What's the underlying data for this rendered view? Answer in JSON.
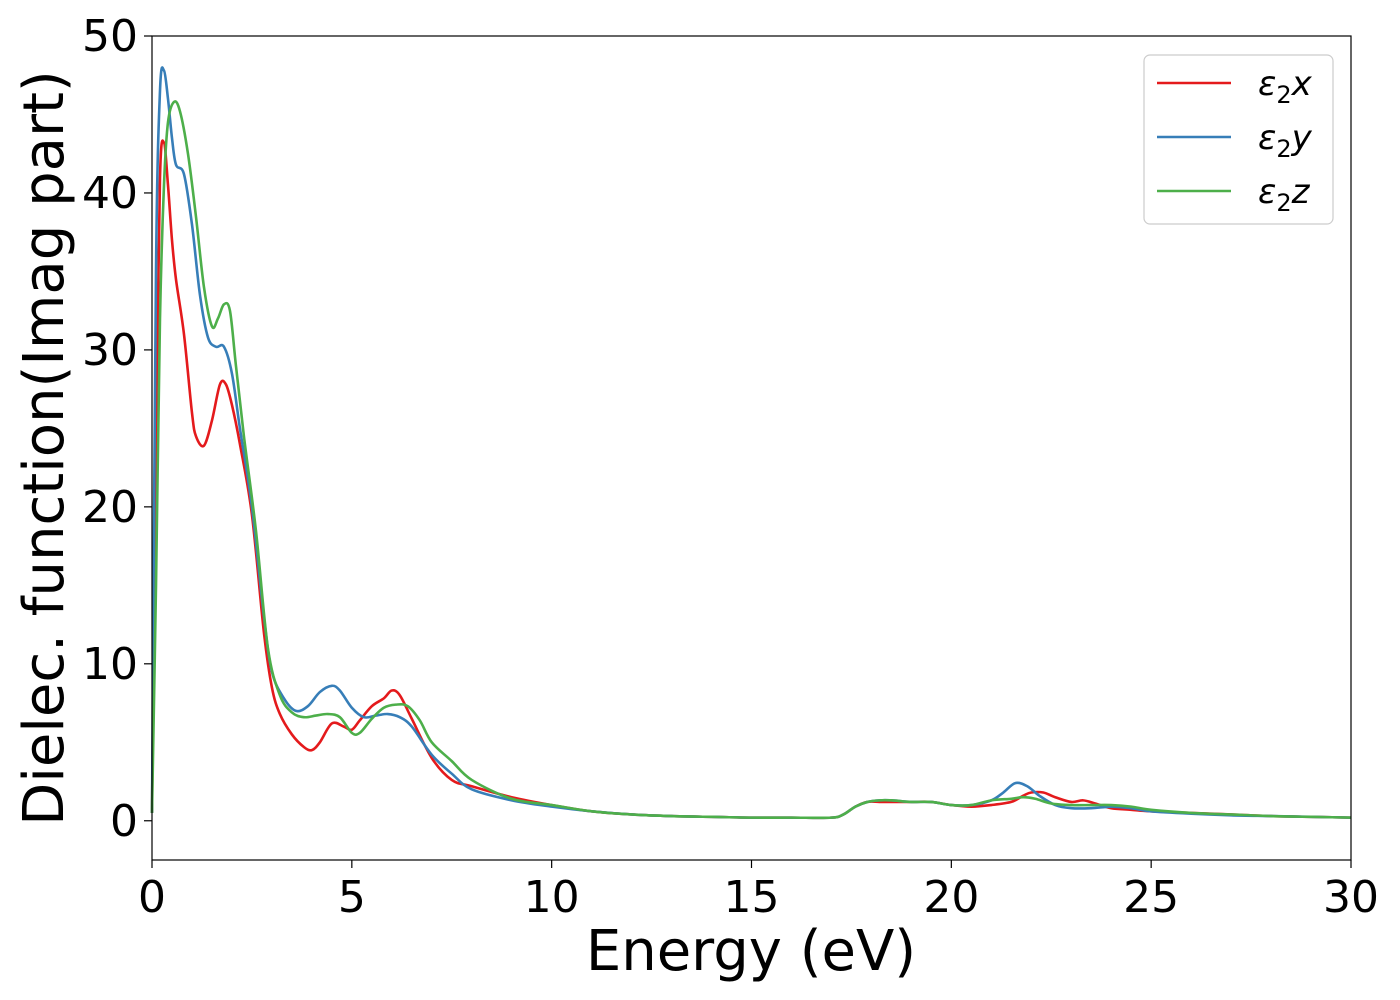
{
  "chart_data": {
    "type": "line",
    "title": "",
    "xlabel": "Energy (eV)",
    "ylabel": "Dielec. function(Imag part)",
    "xlim": [
      0,
      30
    ],
    "ylim": [
      -2.5,
      50
    ],
    "xticks": [
      0,
      5,
      10,
      15,
      20,
      25,
      30
    ],
    "xtick_labels": [
      "0",
      "5",
      "10",
      "15",
      "20",
      "25",
      "30"
    ],
    "yticks": [
      0,
      10,
      20,
      30,
      40,
      50
    ],
    "ytick_labels": [
      "0",
      "10",
      "20",
      "30",
      "40",
      "50"
    ],
    "grid": false,
    "legend_position": "top-right",
    "series": [
      {
        "name": "ε₂x",
        "legend_main": "ε",
        "legend_sub": "2",
        "legend_tail": "x",
        "color": "#e41a1c",
        "x": [
          0,
          0.1,
          0.2,
          0.3,
          0.4,
          0.5,
          0.6,
          0.8,
          1.0,
          1.1,
          1.3,
          1.5,
          1.7,
          1.85,
          2.0,
          2.2,
          2.5,
          2.8,
          3.0,
          3.2,
          3.5,
          3.8,
          4.0,
          4.2,
          4.5,
          4.8,
          5.0,
          5.2,
          5.5,
          5.8,
          6.0,
          6.2,
          6.5,
          7.0,
          7.5,
          8.0,
          9.0,
          10.0,
          11.0,
          12.0,
          13.0,
          14.0,
          15.0,
          16.0,
          17.0,
          17.3,
          17.6,
          17.9,
          18.2,
          18.5,
          19.0,
          19.5,
          20.0,
          20.5,
          21.0,
          21.5,
          21.8,
          22.0,
          22.3,
          22.6,
          23.0,
          23.3,
          23.6,
          24.0,
          24.5,
          25.0,
          26.0,
          27.0,
          28.0,
          29.0,
          30.0
        ],
        "y": [
          0.5,
          25.0,
          41.0,
          43.2,
          40.5,
          37.0,
          34.5,
          31.0,
          26.0,
          24.5,
          23.9,
          25.5,
          27.8,
          27.8,
          26.5,
          24.0,
          19.5,
          12.0,
          8.5,
          6.8,
          5.5,
          4.7,
          4.5,
          5.0,
          6.2,
          6.0,
          5.8,
          6.4,
          7.3,
          7.8,
          8.3,
          8.0,
          6.5,
          4.0,
          2.6,
          2.2,
          1.5,
          1.0,
          0.6,
          0.4,
          0.3,
          0.25,
          0.2,
          0.2,
          0.2,
          0.4,
          0.9,
          1.2,
          1.2,
          1.2,
          1.2,
          1.2,
          1.0,
          0.9,
          1.0,
          1.2,
          1.6,
          1.8,
          1.8,
          1.5,
          1.2,
          1.3,
          1.1,
          0.8,
          0.7,
          0.6,
          0.5,
          0.4,
          0.3,
          0.25,
          0.2
        ]
      },
      {
        "name": "ε₂y",
        "legend_main": "ε",
        "legend_sub": "2",
        "legend_tail": "y",
        "color": "#377eb8",
        "x": [
          0,
          0.1,
          0.2,
          0.3,
          0.4,
          0.5,
          0.6,
          0.8,
          1.0,
          1.2,
          1.4,
          1.6,
          1.8,
          2.0,
          2.2,
          2.5,
          2.8,
          3.0,
          3.3,
          3.6,
          3.9,
          4.2,
          4.5,
          4.7,
          5.0,
          5.3,
          5.6,
          5.9,
          6.2,
          6.5,
          7.0,
          7.5,
          8.0,
          9.0,
          10.0,
          11.0,
          12.0,
          13.0,
          14.0,
          15.0,
          16.0,
          17.0,
          17.3,
          17.6,
          17.9,
          18.2,
          18.5,
          19.0,
          19.5,
          20.0,
          20.5,
          21.0,
          21.3,
          21.6,
          21.9,
          22.2,
          22.6,
          23.0,
          23.5,
          24.0,
          24.5,
          25.0,
          26.0,
          27.0,
          28.0,
          29.0,
          30.0
        ],
        "y": [
          0.5,
          35.0,
          46.5,
          47.8,
          46.0,
          43.5,
          41.8,
          41.2,
          38.0,
          33.5,
          30.8,
          30.2,
          30.2,
          28.5,
          25.0,
          20.0,
          13.0,
          9.5,
          7.8,
          7.0,
          7.3,
          8.2,
          8.6,
          8.3,
          7.2,
          6.6,
          6.7,
          6.8,
          6.6,
          6.0,
          4.2,
          3.0,
          2.0,
          1.3,
          0.9,
          0.6,
          0.4,
          0.3,
          0.25,
          0.2,
          0.2,
          0.2,
          0.4,
          0.9,
          1.2,
          1.3,
          1.3,
          1.2,
          1.2,
          1.0,
          1.0,
          1.3,
          1.8,
          2.4,
          2.2,
          1.6,
          1.0,
          0.8,
          0.8,
          0.9,
          0.8,
          0.6,
          0.45,
          0.35,
          0.3,
          0.25,
          0.2
        ]
      },
      {
        "name": "ε₂z",
        "legend_main": "ε",
        "legend_sub": "2",
        "legend_tail": "z",
        "color": "#4daf4a",
        "x": [
          0,
          0.1,
          0.2,
          0.3,
          0.4,
          0.55,
          0.7,
          0.9,
          1.1,
          1.3,
          1.5,
          1.65,
          1.8,
          1.95,
          2.1,
          2.3,
          2.6,
          2.9,
          3.2,
          3.5,
          3.8,
          4.1,
          4.4,
          4.7,
          5.0,
          5.2,
          5.5,
          5.8,
          6.1,
          6.4,
          6.7,
          7.0,
          7.5,
          8.0,
          9.0,
          10.0,
          11.0,
          12.0,
          13.0,
          14.0,
          15.0,
          16.0,
          17.0,
          17.3,
          17.6,
          17.9,
          18.2,
          18.5,
          19.0,
          19.5,
          20.0,
          20.5,
          21.0,
          21.5,
          21.8,
          22.1,
          22.5,
          23.0,
          23.5,
          24.0,
          24.5,
          25.0,
          26.0,
          27.0,
          28.0,
          29.0,
          30.0
        ],
        "y": [
          0.5,
          15.0,
          32.0,
          40.5,
          44.5,
          45.8,
          45.2,
          42.5,
          38.5,
          34.0,
          31.5,
          32.0,
          32.9,
          32.5,
          29.0,
          24.5,
          18.5,
          11.0,
          8.0,
          6.9,
          6.6,
          6.7,
          6.8,
          6.6,
          5.6,
          5.6,
          6.5,
          7.2,
          7.4,
          7.3,
          6.4,
          5.0,
          3.8,
          2.6,
          1.4,
          1.0,
          0.6,
          0.4,
          0.3,
          0.25,
          0.2,
          0.2,
          0.2,
          0.4,
          0.9,
          1.2,
          1.3,
          1.3,
          1.2,
          1.2,
          1.0,
          1.0,
          1.3,
          1.4,
          1.5,
          1.4,
          1.1,
          1.0,
          1.0,
          1.0,
          0.9,
          0.7,
          0.5,
          0.4,
          0.3,
          0.25,
          0.2
        ]
      }
    ]
  }
}
